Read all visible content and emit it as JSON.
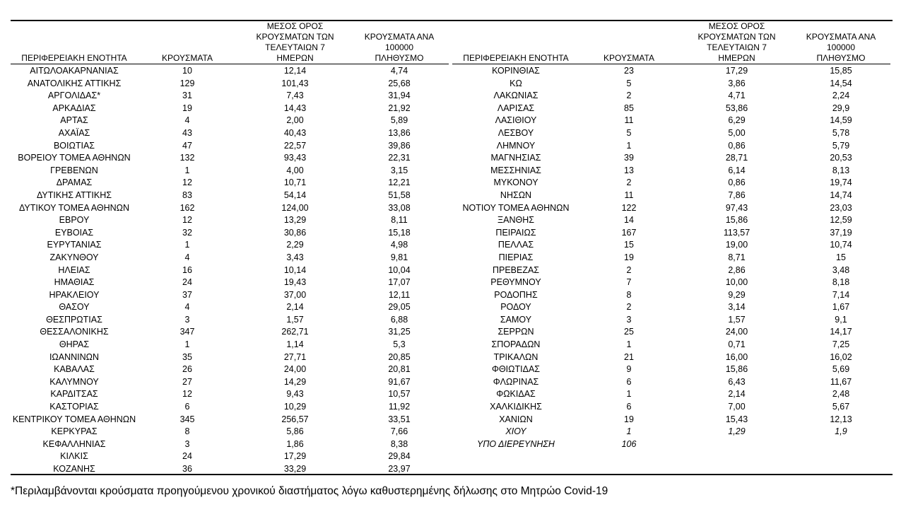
{
  "headers": {
    "region": "ΠΕΡΙΦΕΡΕΙΑΚΗ ΕΝΟΤΗΤΑ",
    "cases": "ΚΡΟΥΣΜΑΤΑ",
    "avg7_line1": "ΜΕΣΟΣ ΟΡΟΣ",
    "avg7_line2": "ΚΡΟΥΣΜΑΤΩΝ ΤΩΝ",
    "avg7_line3": "ΤΕΛΕΥΤΑΙΩΝ 7 ΗΜΕΡΩΝ",
    "per100k_line1": "ΚΡΟΥΣΜΑΤΑ ΑΝΑ 100000",
    "per100k_line2": "ΠΛΗΘΥΣΜΟ"
  },
  "left_rows": [
    {
      "region": "ΑΙΤΩΛΟΑΚΑΡΝΑΝΙΑΣ",
      "cases": "10",
      "avg7": "12,14",
      "per100k": "4,74"
    },
    {
      "region": "ΑΝΑΤΟΛΙΚΗΣ ΑΤΤΙΚΗΣ",
      "cases": "129",
      "avg7": "101,43",
      "per100k": "25,68"
    },
    {
      "region": "ΑΡΓΟΛΙΔΑΣ*",
      "cases": "31",
      "avg7": "7,43",
      "per100k": "31,94"
    },
    {
      "region": "ΑΡΚΑΔΙΑΣ",
      "cases": "19",
      "avg7": "14,43",
      "per100k": "21,92"
    },
    {
      "region": "ΑΡΤΑΣ",
      "cases": "4",
      "avg7": "2,00",
      "per100k": "5,89"
    },
    {
      "region": "ΑΧΑΪΑΣ",
      "cases": "43",
      "avg7": "40,43",
      "per100k": "13,86"
    },
    {
      "region": "ΒΟΙΩΤΙΑΣ",
      "cases": "47",
      "avg7": "22,57",
      "per100k": "39,86"
    },
    {
      "region": "ΒΟΡΕΙΟΥ ΤΟΜΕΑ ΑΘΗΝΩΝ",
      "cases": "132",
      "avg7": "93,43",
      "per100k": "22,31"
    },
    {
      "region": "ΓΡΕΒΕΝΩΝ",
      "cases": "1",
      "avg7": "4,00",
      "per100k": "3,15"
    },
    {
      "region": "ΔΡΑΜΑΣ",
      "cases": "12",
      "avg7": "10,71",
      "per100k": "12,21"
    },
    {
      "region": "ΔΥΤΙΚΗΣ ΑΤΤΙΚΗΣ",
      "cases": "83",
      "avg7": "54,14",
      "per100k": "51,58"
    },
    {
      "region": "ΔΥΤΙΚΟΥ ΤΟΜΕΑ ΑΘΗΝΩΝ",
      "cases": "162",
      "avg7": "124,00",
      "per100k": "33,08"
    },
    {
      "region": "ΕΒΡΟΥ",
      "cases": "12",
      "avg7": "13,29",
      "per100k": "8,11"
    },
    {
      "region": "ΕΥΒΟΙΑΣ",
      "cases": "32",
      "avg7": "30,86",
      "per100k": "15,18"
    },
    {
      "region": "ΕΥΡΥΤΑΝΙΑΣ",
      "cases": "1",
      "avg7": "2,29",
      "per100k": "4,98"
    },
    {
      "region": "ΖΑΚΥΝΘΟΥ",
      "cases": "4",
      "avg7": "3,43",
      "per100k": "9,81"
    },
    {
      "region": "ΗΛΕΙΑΣ",
      "cases": "16",
      "avg7": "10,14",
      "per100k": "10,04"
    },
    {
      "region": "ΗΜΑΘΙΑΣ",
      "cases": "24",
      "avg7": "19,43",
      "per100k": "17,07"
    },
    {
      "region": "ΗΡΑΚΛΕΙΟΥ",
      "cases": "37",
      "avg7": "37,00",
      "per100k": "12,11"
    },
    {
      "region": "ΘΑΣΟΥ",
      "cases": "4",
      "avg7": "2,14",
      "per100k": "29,05"
    },
    {
      "region": "ΘΕΣΠΡΩΤΙΑΣ",
      "cases": "3",
      "avg7": "1,57",
      "per100k": "6,88"
    },
    {
      "region": "ΘΕΣΣΑΛΟΝΙΚΗΣ",
      "cases": "347",
      "avg7": "262,71",
      "per100k": "31,25"
    },
    {
      "region": "ΘΗΡΑΣ",
      "cases": "1",
      "avg7": "1,14",
      "per100k": "5,3"
    },
    {
      "region": "ΙΩΑΝΝΙΝΩΝ",
      "cases": "35",
      "avg7": "27,71",
      "per100k": "20,85"
    },
    {
      "region": "ΚΑΒΑΛΑΣ",
      "cases": "26",
      "avg7": "24,00",
      "per100k": "20,81"
    },
    {
      "region": "ΚΑΛΥΜΝΟΥ",
      "cases": "27",
      "avg7": "14,29",
      "per100k": "91,67"
    },
    {
      "region": "ΚΑΡΔΙΤΣΑΣ",
      "cases": "12",
      "avg7": "9,43",
      "per100k": "10,57"
    },
    {
      "region": "ΚΑΣΤΟΡΙΑΣ",
      "cases": "6",
      "avg7": "10,29",
      "per100k": "11,92"
    },
    {
      "region": "ΚΕΝΤΡΙΚΟΥ ΤΟΜΕΑ ΑΘΗΝΩΝ",
      "cases": "345",
      "avg7": "256,57",
      "per100k": "33,51"
    },
    {
      "region": "ΚΕΡΚΥΡΑΣ",
      "cases": "8",
      "avg7": "5,86",
      "per100k": "7,66"
    },
    {
      "region": "ΚΕΦΑΛΛΗΝΙΑΣ",
      "cases": "3",
      "avg7": "1,86",
      "per100k": "8,38"
    },
    {
      "region": "ΚΙΛΚΙΣ",
      "cases": "24",
      "avg7": "17,29",
      "per100k": "29,84"
    },
    {
      "region": "ΚΟΖΑΝΗΣ",
      "cases": "36",
      "avg7": "33,29",
      "per100k": "23,97"
    }
  ],
  "right_rows": [
    {
      "region": "ΚΟΡΙΝΘΙΑΣ",
      "cases": "23",
      "avg7": "17,29",
      "per100k": "15,85"
    },
    {
      "region": "ΚΩ",
      "cases": "5",
      "avg7": "3,86",
      "per100k": "14,54"
    },
    {
      "region": "ΛΑΚΩΝΙΑΣ",
      "cases": "2",
      "avg7": "4,71",
      "per100k": "2,24"
    },
    {
      "region": "ΛΑΡΙΣΑΣ",
      "cases": "85",
      "avg7": "53,86",
      "per100k": "29,9"
    },
    {
      "region": "ΛΑΣΙΘΙΟΥ",
      "cases": "11",
      "avg7": "6,29",
      "per100k": "14,59"
    },
    {
      "region": "ΛΕΣΒΟΥ",
      "cases": "5",
      "avg7": "5,00",
      "per100k": "5,78"
    },
    {
      "region": "ΛΗΜΝΟΥ",
      "cases": "1",
      "avg7": "0,86",
      "per100k": "5,79"
    },
    {
      "region": "ΜΑΓΝΗΣΙΑΣ",
      "cases": "39",
      "avg7": "28,71",
      "per100k": "20,53"
    },
    {
      "region": "ΜΕΣΣΗΝΙΑΣ",
      "cases": "13",
      "avg7": "6,14",
      "per100k": "8,13"
    },
    {
      "region": "ΜΥΚΟΝΟΥ",
      "cases": "2",
      "avg7": "0,86",
      "per100k": "19,74"
    },
    {
      "region": "ΝΗΣΩΝ",
      "cases": "11",
      "avg7": "7,86",
      "per100k": "14,74"
    },
    {
      "region": "ΝΟΤΙΟΥ ΤΟΜΕΑ ΑΘΗΝΩΝ",
      "cases": "122",
      "avg7": "97,43",
      "per100k": "23,03"
    },
    {
      "region": "ΞΑΝΘΗΣ",
      "cases": "14",
      "avg7": "15,86",
      "per100k": "12,59"
    },
    {
      "region": "ΠΕΙΡΑΙΩΣ",
      "cases": "167",
      "avg7": "113,57",
      "per100k": "37,19"
    },
    {
      "region": "ΠΕΛΛΑΣ",
      "cases": "15",
      "avg7": "19,00",
      "per100k": "10,74"
    },
    {
      "region": "ΠΙΕΡΙΑΣ",
      "cases": "19",
      "avg7": "8,71",
      "per100k": "15"
    },
    {
      "region": "ΠΡΕΒΕΖΑΣ",
      "cases": "2",
      "avg7": "2,86",
      "per100k": "3,48"
    },
    {
      "region": "ΡΕΘΥΜΝΟΥ",
      "cases": "7",
      "avg7": "10,00",
      "per100k": "8,18"
    },
    {
      "region": "ΡΟΔΟΠΗΣ",
      "cases": "8",
      "avg7": "9,29",
      "per100k": "7,14"
    },
    {
      "region": "ΡΟΔΟΥ",
      "cases": "2",
      "avg7": "3,14",
      "per100k": "1,67"
    },
    {
      "region": "ΣΑΜΟΥ",
      "cases": "3",
      "avg7": "1,57",
      "per100k": "9,1"
    },
    {
      "region": "ΣΕΡΡΩΝ",
      "cases": "25",
      "avg7": "24,00",
      "per100k": "14,17"
    },
    {
      "region": "ΣΠΟΡΑΔΩΝ",
      "cases": "1",
      "avg7": "0,71",
      "per100k": "7,25"
    },
    {
      "region": "ΤΡΙΚΑΛΩΝ",
      "cases": "21",
      "avg7": "16,00",
      "per100k": "16,02"
    },
    {
      "region": "ΦΘΙΩΤΙΔΑΣ",
      "cases": "9",
      "avg7": "15,86",
      "per100k": "5,69"
    },
    {
      "region": "ΦΛΩΡΙΝΑΣ",
      "cases": "6",
      "avg7": "6,43",
      "per100k": "11,67"
    },
    {
      "region": "ΦΩΚΙΔΑΣ",
      "cases": "1",
      "avg7": "2,14",
      "per100k": "2,48"
    },
    {
      "region": "ΧΑΛΚΙΔΙΚΗΣ",
      "cases": "6",
      "avg7": "7,00",
      "per100k": "5,67"
    },
    {
      "region": "ΧΑΝΙΩΝ",
      "cases": "19",
      "avg7": "15,43",
      "per100k": "12,13"
    },
    {
      "region": "ΧΙΟΥ",
      "cases": "1",
      "avg7": "1,29",
      "per100k": "1,9",
      "italic": true
    },
    {
      "region": "ΥΠΟ ΔΙΕΡΕΥΝΗΣΗ",
      "cases": "106",
      "avg7": "",
      "per100k": "",
      "italic": true
    }
  ],
  "footnote": "*Περιλαμβάνονται κρούσματα προηγούμενου χρονικού διαστήματος λόγω καθυστερημένης δήλωσης στο Μητρώο Covid-19"
}
